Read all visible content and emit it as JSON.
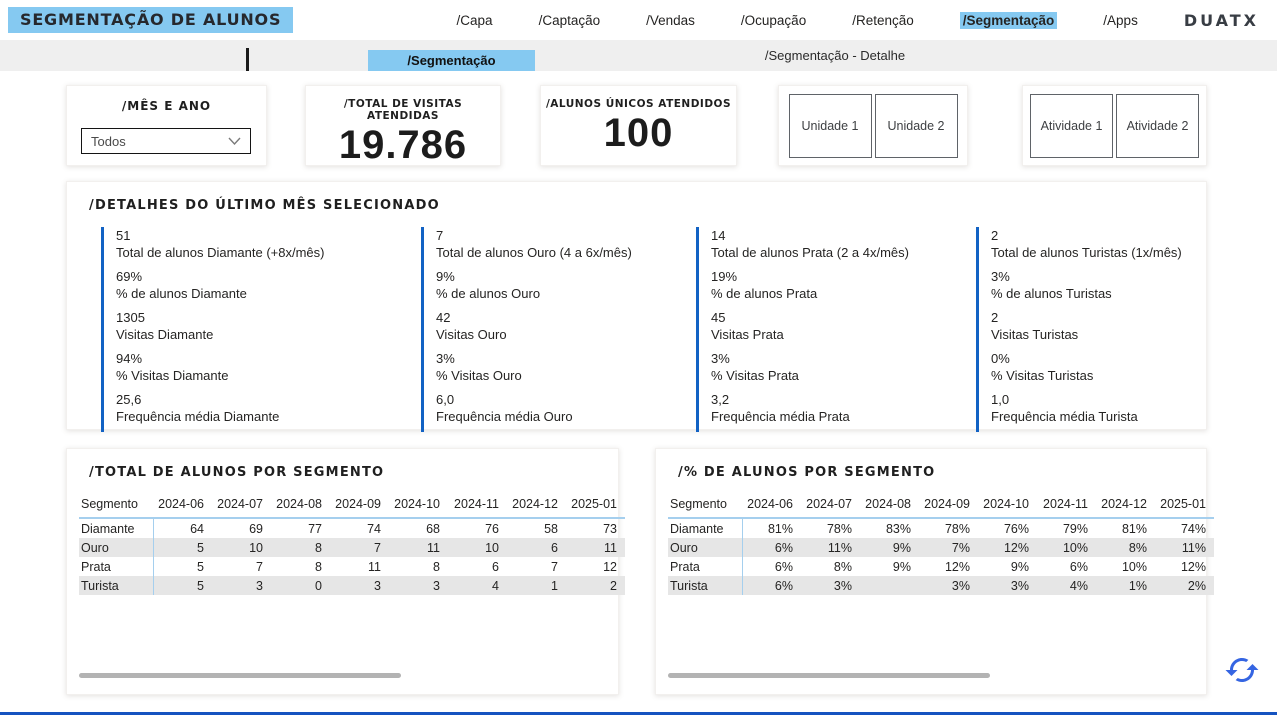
{
  "header": {
    "title": "SEGMENTAÇÃO DE ALUNOS",
    "nav": [
      {
        "label": "/Capa",
        "active": false
      },
      {
        "label": "/Captação",
        "active": false
      },
      {
        "label": "/Vendas",
        "active": false
      },
      {
        "label": "/Ocupação",
        "active": false
      },
      {
        "label": "/Retenção",
        "active": false
      },
      {
        "label": "/Segmentação",
        "active": true
      },
      {
        "label": "/Apps",
        "active": false
      }
    ],
    "logo": "DUATX"
  },
  "subnav": {
    "active_tab": "/Segmentação",
    "detail_tab": "/Segmentação - Detalhe"
  },
  "filters": {
    "month_card": {
      "title": "/MÊS E ANO",
      "dropdown_value": "Todos"
    },
    "kpis": [
      {
        "title": "/TOTAL DE VISITAS ATENDIDAS",
        "value": "19.786"
      },
      {
        "title": "/ALUNOS ÚNICOS ATENDIDOS",
        "value": "100"
      }
    ],
    "unit_buttons": [
      "Unidade 1",
      "Unidade 2"
    ],
    "activity_buttons": [
      "Atividade 1",
      "Atividade 2"
    ]
  },
  "details": {
    "title": "/DETALHES DO ÚLTIMO MÊS SELECIONADO",
    "columns": [
      {
        "name": "Diamante",
        "stats": [
          {
            "value": "51",
            "label": "Total de alunos Diamante (+8x/mês)"
          },
          {
            "value": "69%",
            "label": "% de alunos Diamante"
          },
          {
            "value": "1305",
            "label": "Visitas Diamante"
          },
          {
            "value": "94%",
            "label": "% Visitas Diamante"
          },
          {
            "value": "25,6",
            "label": "Frequência média Diamante"
          }
        ]
      },
      {
        "name": "Ouro",
        "stats": [
          {
            "value": "7",
            "label": "Total de alunos Ouro (4 a 6x/mês)"
          },
          {
            "value": "9%",
            "label": "% de alunos Ouro"
          },
          {
            "value": "42",
            "label": "Visitas Ouro"
          },
          {
            "value": "3%",
            "label": "% Visitas Ouro"
          },
          {
            "value": "6,0",
            "label": "Frequência média Ouro"
          }
        ]
      },
      {
        "name": "Prata",
        "stats": [
          {
            "value": "14",
            "label": "Total de alunos Prata (2 a 4x/mês)"
          },
          {
            "value": "19%",
            "label": "% de alunos Prata"
          },
          {
            "value": "45",
            "label": "Visitas Prata"
          },
          {
            "value": "3%",
            "label": "% Visitas Prata"
          },
          {
            "value": "3,2",
            "label": "Frequência média Prata"
          }
        ]
      },
      {
        "name": "Turistas",
        "stats": [
          {
            "value": "2",
            "label": "Total de alunos Turistas (1x/mês)"
          },
          {
            "value": "3%",
            "label": "% de alunos Turistas"
          },
          {
            "value": "2",
            "label": "Visitas Turistas"
          },
          {
            "value": "0%",
            "label": "% Visitas Turistas"
          },
          {
            "value": "1,0",
            "label": "Frequência média Turista"
          }
        ]
      }
    ]
  },
  "tables": [
    {
      "title": "/TOTAL DE ALUNOS POR SEGMENTO",
      "columns": [
        "Segmento",
        "2024-06",
        "2024-07",
        "2024-08",
        "2024-09",
        "2024-10",
        "2024-11",
        "2024-12",
        "2025-01"
      ],
      "rows": [
        {
          "segment": "Diamante",
          "values": [
            "64",
            "69",
            "77",
            "74",
            "68",
            "76",
            "58",
            "73"
          ]
        },
        {
          "segment": "Ouro",
          "values": [
            "5",
            "10",
            "8",
            "7",
            "11",
            "10",
            "6",
            "11"
          ]
        },
        {
          "segment": "Prata",
          "values": [
            "5",
            "7",
            "8",
            "11",
            "8",
            "6",
            "7",
            "12"
          ]
        },
        {
          "segment": "Turista",
          "values": [
            "5",
            "3",
            "0",
            "3",
            "3",
            "4",
            "1",
            "2"
          ]
        }
      ]
    },
    {
      "title": "/% DE ALUNOS POR SEGMENTO",
      "columns": [
        "Segmento",
        "2024-06",
        "2024-07",
        "2024-08",
        "2024-09",
        "2024-10",
        "2024-11",
        "2024-12",
        "2025-01"
      ],
      "rows": [
        {
          "segment": "Diamante",
          "values": [
            "81%",
            "78%",
            "83%",
            "78%",
            "76%",
            "79%",
            "81%",
            "74%"
          ]
        },
        {
          "segment": "Ouro",
          "values": [
            "6%",
            "11%",
            "9%",
            "7%",
            "12%",
            "10%",
            "8%",
            "11%"
          ]
        },
        {
          "segment": "Prata",
          "values": [
            "6%",
            "8%",
            "9%",
            "12%",
            "9%",
            "6%",
            "10%",
            "12%"
          ]
        },
        {
          "segment": "Turista",
          "values": [
            "6%",
            "3%",
            "",
            "3%",
            "3%",
            "4%",
            "1%",
            "2%"
          ]
        }
      ]
    }
  ],
  "colors": {
    "highlight_blue": "#85C9F1",
    "stat_bar_blue": "#1262C4",
    "table_line_blue": "#A5CFEE",
    "row_alt_gray": "#E6E6E6",
    "footer_blue": "#1553C0",
    "refresh_blue": "#3565E2"
  }
}
